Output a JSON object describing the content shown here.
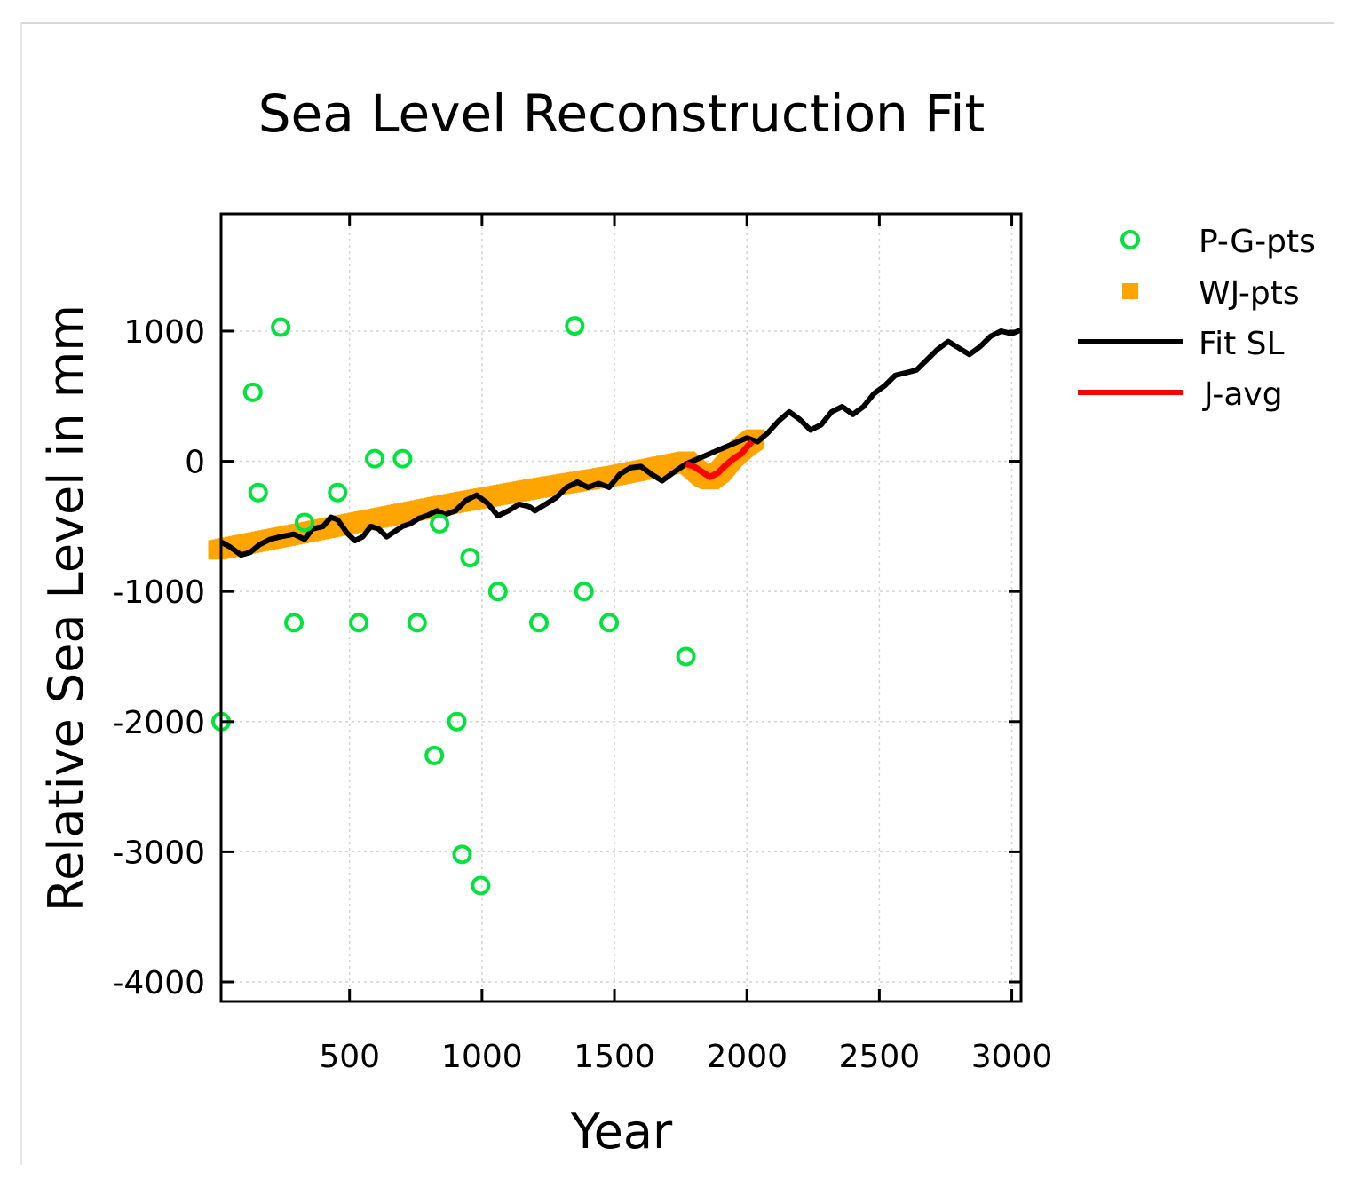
{
  "chart_data": {
    "type": "scatter",
    "title": "Sea Level Reconstruction Fit",
    "xlabel": "Year",
    "ylabel": "Relative Sea Level in mm",
    "xlim": [
      15,
      3035
    ],
    "ylim": [
      -4150,
      1900
    ],
    "x_ticks": [
      500,
      1000,
      1500,
      2000,
      2500,
      3000
    ],
    "x_tick_labels": [
      "500",
      "1000",
      "1500",
      "2000",
      "2500",
      "3000"
    ],
    "y_ticks": [
      1000,
      0,
      -1000,
      -2000,
      -3000,
      -4000
    ],
    "y_tick_labels": [
      "1000",
      "0",
      "-1000",
      "-2000",
      "-3000",
      "-4000"
    ],
    "grid": true,
    "legend_position": "right-top, outside plot",
    "colors": {
      "pg": "#00e33c",
      "wj": "#ffa500",
      "fit": "#000000",
      "javg": "#ff0000"
    },
    "series": [
      {
        "name": "P-G-pts",
        "kind": "scatter-circle",
        "points": [
          [
            15,
            -2000
          ],
          [
            135,
            530
          ],
          [
            155,
            -240
          ],
          [
            240,
            1030
          ],
          [
            290,
            -1240
          ],
          [
            330,
            -470
          ],
          [
            455,
            -240
          ],
          [
            535,
            -1240
          ],
          [
            595,
            20
          ],
          [
            700,
            20
          ],
          [
            755,
            -1240
          ],
          [
            820,
            -2260
          ],
          [
            840,
            -480
          ],
          [
            905,
            -2000
          ],
          [
            925,
            -3020
          ],
          [
            955,
            -740
          ],
          [
            995,
            -3260
          ],
          [
            1060,
            -1000
          ],
          [
            1215,
            -1240
          ],
          [
            1350,
            1040
          ],
          [
            1385,
            -1000
          ],
          [
            1480,
            -1240
          ],
          [
            1770,
            -1500
          ]
        ]
      },
      {
        "name": "WJ-pts",
        "kind": "band",
        "x": [
          0,
          300,
          600,
          900,
          1200,
          1500,
          1770,
          1830,
          1860,
          1900,
          1950,
          2000,
          2030
        ],
        "y": [
          -680,
          -560,
          -440,
          -320,
          -210,
          -110,
          0,
          -110,
          -140,
          -80,
          40,
          130,
          170
        ],
        "half_width": 75
      },
      {
        "name": "Fit SL",
        "kind": "line",
        "x": [
          15,
          50,
          90,
          125,
          160,
          200,
          240,
          290,
          330,
          360,
          400,
          430,
          455,
          490,
          520,
          550,
          580,
          610,
          640,
          670,
          700,
          730,
          760,
          790,
          830,
          860,
          900,
          940,
          980,
          1020,
          1060,
          1100,
          1140,
          1180,
          1200,
          1240,
          1280,
          1320,
          1360,
          1400,
          1440,
          1480,
          1520,
          1560,
          1600,
          1640,
          1680,
          1720,
          1770,
          2000,
          2040,
          2080,
          2120,
          2160,
          2200,
          2240,
          2280,
          2320,
          2360,
          2400,
          2440,
          2480,
          2520,
          2560,
          2600,
          2640,
          2680,
          2720,
          2760,
          2800,
          2840,
          2880,
          2920,
          2960,
          3000,
          3035
        ],
        "y": [
          -620,
          -660,
          -720,
          -700,
          -640,
          -600,
          -580,
          -560,
          -600,
          -520,
          -500,
          -430,
          -450,
          -550,
          -610,
          -580,
          -500,
          -520,
          -580,
          -540,
          -500,
          -480,
          -440,
          -420,
          -380,
          -410,
          -380,
          -300,
          -260,
          -320,
          -420,
          -380,
          -330,
          -350,
          -380,
          -330,
          -280,
          -200,
          -160,
          -200,
          -170,
          -200,
          -100,
          -50,
          -40,
          -100,
          -150,
          -90,
          -20,
          180,
          150,
          220,
          310,
          380,
          320,
          240,
          280,
          380,
          420,
          360,
          420,
          520,
          580,
          660,
          680,
          700,
          780,
          860,
          920,
          870,
          820,
          880,
          960,
          1000,
          980,
          1010
        ]
      },
      {
        "name": "J-avg",
        "kind": "line",
        "x": [
          1770,
          1800,
          1830,
          1860,
          1890,
          1920,
          1950,
          1980,
          2000,
          2020
        ],
        "y": [
          -20,
          -40,
          -80,
          -120,
          -90,
          -30,
          20,
          60,
          110,
          150
        ]
      }
    ]
  }
}
